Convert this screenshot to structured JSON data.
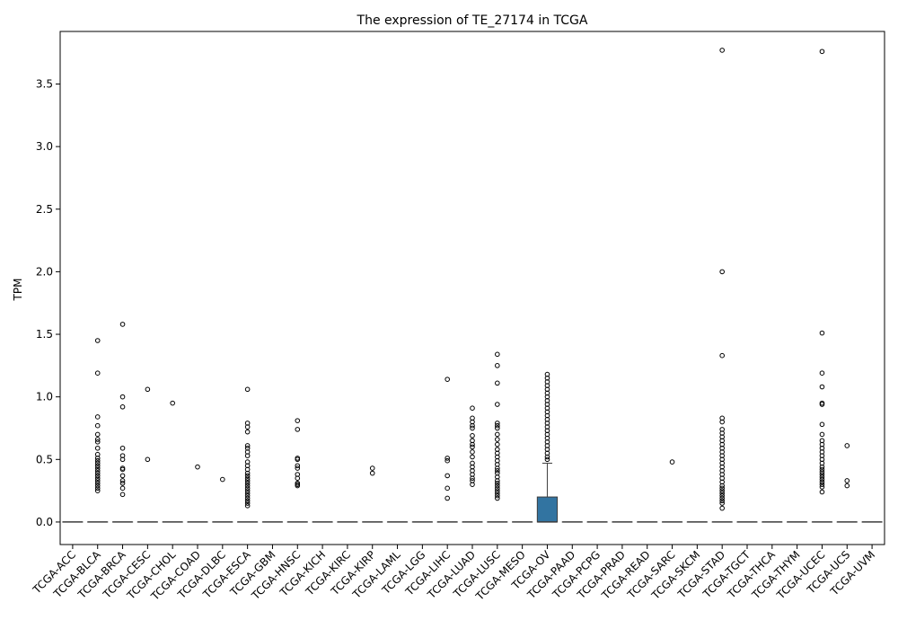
{
  "chart_data": {
    "type": "box",
    "title": "The expression of TE_27174 in TCGA",
    "xlabel": "",
    "ylabel": "TPM",
    "ylim": [
      -0.18,
      3.92
    ],
    "yticks": [
      0.0,
      0.5,
      1.0,
      1.5,
      2.0,
      2.5,
      3.0,
      3.5
    ],
    "ytick_labels": [
      "0.0",
      "0.5",
      "1.0",
      "1.5",
      "2.0",
      "2.5",
      "3.0",
      "3.5"
    ],
    "grid": false,
    "legend": "none",
    "box_color": "#3274a1",
    "categories": [
      "TCGA-ACC",
      "TCGA-BLCA",
      "TCGA-BRCA",
      "TCGA-CESC",
      "TCGA-CHOL",
      "TCGA-COAD",
      "TCGA-DLBC",
      "TCGA-ESCA",
      "TCGA-GBM",
      "TCGA-HNSC",
      "TCGA-KICH",
      "TCGA-KIRC",
      "TCGA-KIRP",
      "TCGA-LAML",
      "TCGA-LGG",
      "TCGA-LIHC",
      "TCGA-LUAD",
      "TCGA-LUSC",
      "TCGA-MESO",
      "TCGA-OV",
      "TCGA-PAAD",
      "TCGA-PCPG",
      "TCGA-PRAD",
      "TCGA-READ",
      "TCGA-SARC",
      "TCGA-SKCM",
      "TCGA-STAD",
      "TCGA-TGCT",
      "TCGA-THCA",
      "TCGA-THYM",
      "TCGA-UCEC",
      "TCGA-UCS",
      "TCGA-UVM"
    ],
    "boxes": [
      {
        "q1": 0,
        "median": 0,
        "q3": 0,
        "whisker_low": 0,
        "whisker_high": 0,
        "outliers": []
      },
      {
        "q1": 0,
        "median": 0,
        "q3": 0,
        "whisker_low": 0,
        "whisker_high": 0,
        "outliers": [
          1.45,
          1.19,
          0.84,
          0.77,
          0.7,
          0.66,
          0.64,
          0.59,
          0.54,
          0.51,
          0.49,
          0.47,
          0.45,
          0.43,
          0.41,
          0.39,
          0.37,
          0.35,
          0.33,
          0.31,
          0.29,
          0.27,
          0.25
        ]
      },
      {
        "q1": 0,
        "median": 0,
        "q3": 0,
        "whisker_low": 0,
        "whisker_high": 0,
        "outliers": [
          1.58,
          1.0,
          0.92,
          0.59,
          0.53,
          0.5,
          0.43,
          0.42,
          0.37,
          0.33,
          0.31,
          0.27,
          0.22
        ]
      },
      {
        "q1": 0,
        "median": 0,
        "q3": 0,
        "whisker_low": 0,
        "whisker_high": 0,
        "outliers": [
          1.06,
          0.5
        ]
      },
      {
        "q1": 0,
        "median": 0,
        "q3": 0,
        "whisker_low": 0,
        "whisker_high": 0,
        "outliers": [
          0.95
        ]
      },
      {
        "q1": 0,
        "median": 0,
        "q3": 0,
        "whisker_low": 0,
        "whisker_high": 0,
        "outliers": [
          0.44
        ]
      },
      {
        "q1": 0,
        "median": 0,
        "q3": 0,
        "whisker_low": 0,
        "whisker_high": 0,
        "outliers": [
          0.34
        ]
      },
      {
        "q1": 0,
        "median": 0,
        "q3": 0,
        "whisker_low": 0,
        "whisker_high": 0,
        "outliers": [
          1.06,
          0.79,
          0.76,
          0.72,
          0.61,
          0.59,
          0.56,
          0.53,
          0.48,
          0.45,
          0.42,
          0.39,
          0.37,
          0.35,
          0.33,
          0.31,
          0.29,
          0.27,
          0.25,
          0.23,
          0.21,
          0.19,
          0.17,
          0.15,
          0.13
        ]
      },
      {
        "q1": 0,
        "median": 0,
        "q3": 0,
        "whisker_low": 0,
        "whisker_high": 0,
        "outliers": []
      },
      {
        "q1": 0,
        "median": 0,
        "q3": 0,
        "whisker_low": 0,
        "whisker_high": 0,
        "outliers": [
          0.81,
          0.74,
          0.51,
          0.5,
          0.45,
          0.43,
          0.38,
          0.35,
          0.31,
          0.3,
          0.29
        ]
      },
      {
        "q1": 0,
        "median": 0,
        "q3": 0,
        "whisker_low": 0,
        "whisker_high": 0,
        "outliers": []
      },
      {
        "q1": 0,
        "median": 0,
        "q3": 0,
        "whisker_low": 0,
        "whisker_high": 0,
        "outliers": []
      },
      {
        "q1": 0,
        "median": 0,
        "q3": 0,
        "whisker_low": 0,
        "whisker_high": 0,
        "outliers": [
          0.43,
          0.39
        ]
      },
      {
        "q1": 0,
        "median": 0,
        "q3": 0,
        "whisker_low": 0,
        "whisker_high": 0,
        "outliers": []
      },
      {
        "q1": 0,
        "median": 0,
        "q3": 0,
        "whisker_low": 0,
        "whisker_high": 0,
        "outliers": []
      },
      {
        "q1": 0,
        "median": 0,
        "q3": 0,
        "whisker_low": 0,
        "whisker_high": 0,
        "outliers": [
          1.14,
          0.51,
          0.49,
          0.37,
          0.27,
          0.19
        ]
      },
      {
        "q1": 0,
        "median": 0,
        "q3": 0,
        "whisker_low": 0,
        "whisker_high": 0,
        "outliers": [
          0.91,
          0.83,
          0.8,
          0.77,
          0.75,
          0.69,
          0.65,
          0.62,
          0.6,
          0.56,
          0.52,
          0.47,
          0.44,
          0.41,
          0.38,
          0.35,
          0.33,
          0.3
        ]
      },
      {
        "q1": 0,
        "median": 0,
        "q3": 0,
        "whisker_low": 0,
        "whisker_high": 0,
        "outliers": [
          1.34,
          1.25,
          1.11,
          0.94,
          0.79,
          0.77,
          0.75,
          0.7,
          0.66,
          0.62,
          0.58,
          0.55,
          0.52,
          0.49,
          0.46,
          0.43,
          0.41,
          0.39,
          0.36,
          0.33,
          0.31,
          0.29,
          0.27,
          0.25,
          0.23,
          0.21,
          0.19
        ]
      },
      {
        "q1": 0,
        "median": 0,
        "q3": 0,
        "whisker_low": 0,
        "whisker_high": 0,
        "outliers": []
      },
      {
        "q1": 0,
        "median": 0,
        "q3": 0.2,
        "whisker_low": 0,
        "whisker_high": 0.47,
        "outliers": [
          1.18,
          1.15,
          1.12,
          1.09,
          1.06,
          1.03,
          1.0,
          0.97,
          0.94,
          0.91,
          0.88,
          0.85,
          0.82,
          0.79,
          0.76,
          0.73,
          0.7,
          0.67,
          0.64,
          0.61,
          0.58,
          0.55,
          0.52,
          0.5
        ]
      },
      {
        "q1": 0,
        "median": 0,
        "q3": 0,
        "whisker_low": 0,
        "whisker_high": 0,
        "outliers": []
      },
      {
        "q1": 0,
        "median": 0,
        "q3": 0,
        "whisker_low": 0,
        "whisker_high": 0,
        "outliers": []
      },
      {
        "q1": 0,
        "median": 0,
        "q3": 0,
        "whisker_low": 0,
        "whisker_high": 0,
        "outliers": []
      },
      {
        "q1": 0,
        "median": 0,
        "q3": 0,
        "whisker_low": 0,
        "whisker_high": 0,
        "outliers": []
      },
      {
        "q1": 0,
        "median": 0,
        "q3": 0,
        "whisker_low": 0,
        "whisker_high": 0,
        "outliers": [
          0.48
        ]
      },
      {
        "q1": 0,
        "median": 0,
        "q3": 0,
        "whisker_low": 0,
        "whisker_high": 0,
        "outliers": []
      },
      {
        "q1": 0,
        "median": 0,
        "q3": 0,
        "whisker_low": 0,
        "whisker_high": 0,
        "outliers": [
          3.77,
          2.0,
          1.33,
          0.83,
          0.8,
          0.74,
          0.71,
          0.68,
          0.65,
          0.62,
          0.59,
          0.56,
          0.53,
          0.5,
          0.47,
          0.44,
          0.41,
          0.38,
          0.35,
          0.32,
          0.29,
          0.27,
          0.25,
          0.23,
          0.21,
          0.19,
          0.17,
          0.15,
          0.11
        ]
      },
      {
        "q1": 0,
        "median": 0,
        "q3": 0,
        "whisker_low": 0,
        "whisker_high": 0,
        "outliers": []
      },
      {
        "q1": 0,
        "median": 0,
        "q3": 0,
        "whisker_low": 0,
        "whisker_high": 0,
        "outliers": []
      },
      {
        "q1": 0,
        "median": 0,
        "q3": 0,
        "whisker_low": 0,
        "whisker_high": 0,
        "outliers": []
      },
      {
        "q1": 0,
        "median": 0,
        "q3": 0,
        "whisker_low": 0,
        "whisker_high": 0,
        "outliers": [
          3.76,
          1.51,
          1.19,
          1.08,
          0.95,
          0.94,
          0.78,
          0.7,
          0.65,
          0.62,
          0.59,
          0.56,
          0.53,
          0.5,
          0.47,
          0.44,
          0.42,
          0.4,
          0.38,
          0.36,
          0.34,
          0.32,
          0.3,
          0.28,
          0.24
        ]
      },
      {
        "q1": 0,
        "median": 0,
        "q3": 0,
        "whisker_low": 0,
        "whisker_high": 0,
        "outliers": [
          0.61,
          0.33,
          0.29
        ]
      },
      {
        "q1": 0,
        "median": 0,
        "q3": 0,
        "whisker_low": 0,
        "whisker_high": 0,
        "outliers": []
      }
    ]
  }
}
